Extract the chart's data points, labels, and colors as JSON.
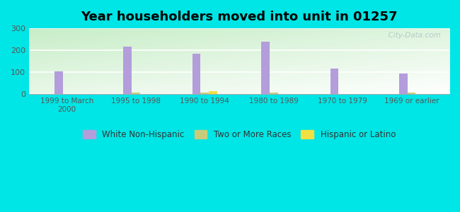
{
  "title": "Year householders moved into unit in 01257",
  "categories": [
    "1999 to March\n2000",
    "1995 to 1998",
    "1990 to 1994",
    "1980 to 1989",
    "1970 to 1979",
    "1969 or earlier"
  ],
  "white_non_hispanic": [
    103,
    217,
    185,
    238,
    116,
    93
  ],
  "two_or_more_races": [
    0,
    7,
    8,
    7,
    0,
    7
  ],
  "hispanic_or_latino": [
    0,
    0,
    15,
    0,
    0,
    0
  ],
  "white_color": "#b39ddb",
  "two_more_color": "#c8cc7a",
  "hispanic_color": "#f0e040",
  "bg_outer": "#00e5e5",
  "bg_plot_tl": "#c8e6c0",
  "bg_plot_br": "#f0fff8",
  "ylim": [
    0,
    300
  ],
  "yticks": [
    0,
    100,
    200,
    300
  ],
  "bar_width": 0.12,
  "watermark": "  City-Data.com"
}
